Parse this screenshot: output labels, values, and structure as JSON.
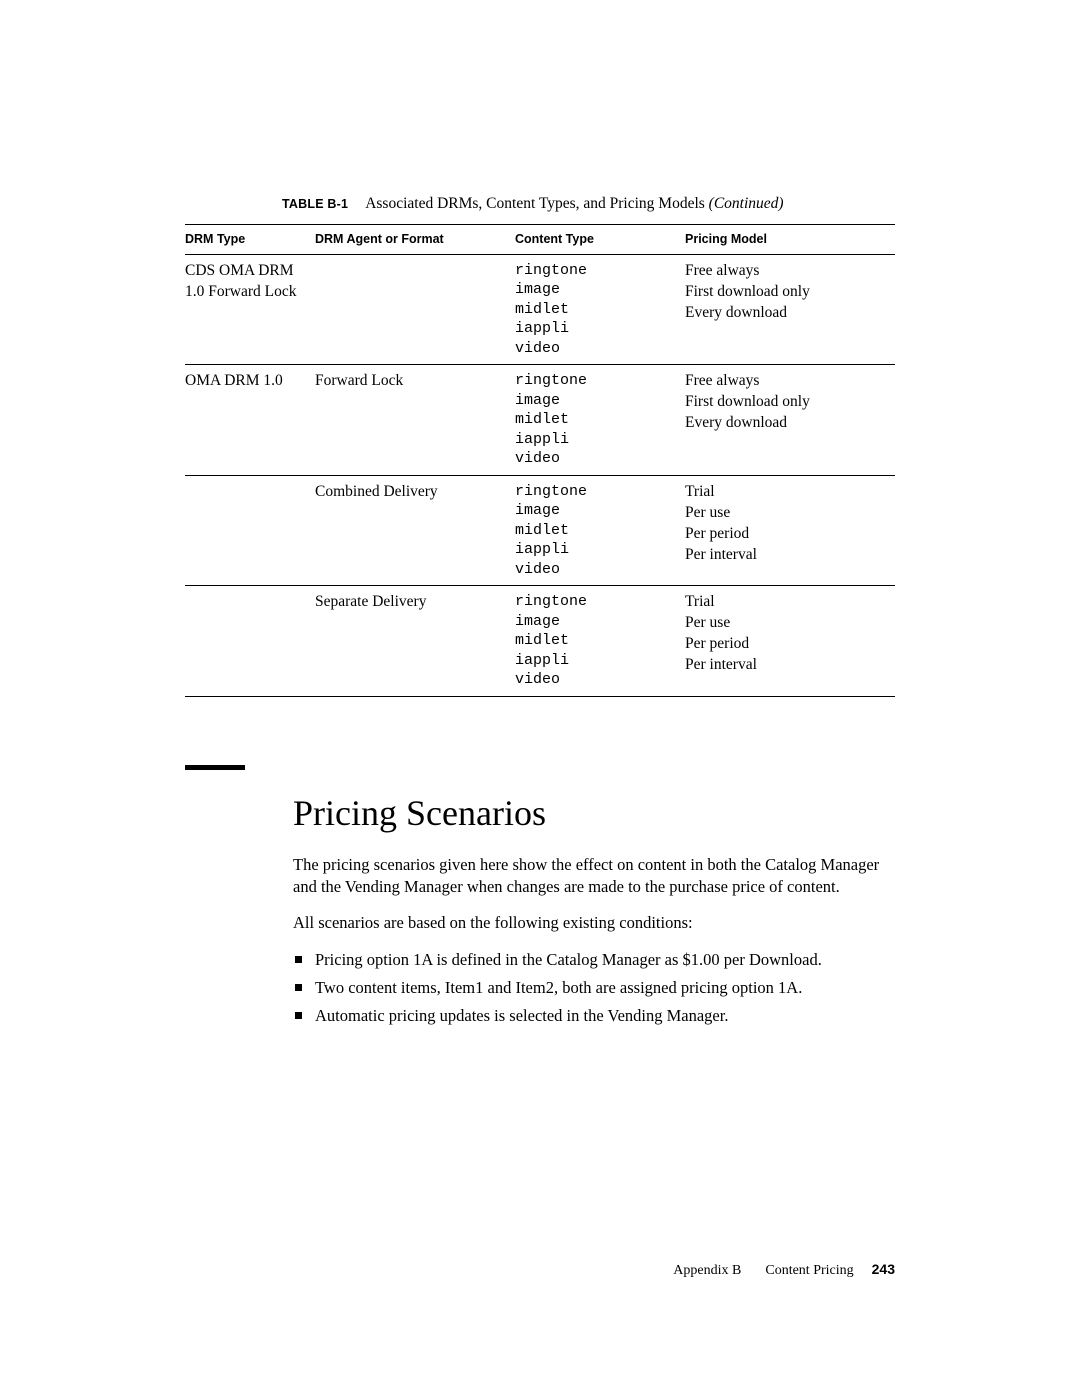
{
  "caption": {
    "label": "TABLE B-1",
    "text": "Associated DRMs, Content Types, and Pricing Models ",
    "continued": "(Continued)"
  },
  "headers": {
    "drm_type": "DRM Type",
    "agent": "DRM Agent or Format",
    "content_type": "Content Type",
    "pricing": "Pricing Model"
  },
  "rows": [
    {
      "type": "CDS OMA DRM 1.0 Forward Lock",
      "agent": "",
      "content": "ringtone\nimage\nmidlet\niappli\nvideo",
      "pricing": "Free always\nFirst download only\nEvery download"
    },
    {
      "type": "OMA DRM 1.0",
      "agent": "Forward Lock",
      "content": "ringtone\nimage\nmidlet\niappli\nvideo",
      "pricing": "Free always\nFirst download only\nEvery download"
    },
    {
      "type": "",
      "agent": "Combined Delivery",
      "content": "ringtone\nimage\nmidlet\niappli\nvideo",
      "pricing": "Trial\nPer use\nPer period\nPer interval"
    },
    {
      "type": "",
      "agent": "Separate Delivery",
      "content": "ringtone\nimage\nmidlet\niappli\nvideo",
      "pricing": "Trial\nPer use\nPer period\nPer interval"
    }
  ],
  "section": {
    "title": "Pricing Scenarios",
    "p1": "The pricing scenarios given here show the effect on content in both the Catalog Manager and the Vending Manager when changes are made to the purchase price of content.",
    "p2": "All scenarios are based on the following existing conditions:",
    "bullets": [
      "Pricing option 1A is defined in the Catalog Manager as $1.00 per Download.",
      "Two content items, Item1 and Item2, both are assigned pricing option 1A.",
      "Automatic pricing updates is selected in the Vending Manager."
    ]
  },
  "footer": {
    "appendix": "Appendix B",
    "title": "Content Pricing",
    "page": "243"
  },
  "colors": {
    "text": "#000000",
    "background": "#ffffff",
    "rule": "#000000"
  },
  "typography": {
    "body_fontsize_pt": 12,
    "heading_fontsize_pt": 27,
    "mono_family": "Courier New",
    "serif_family": "Palatino"
  }
}
